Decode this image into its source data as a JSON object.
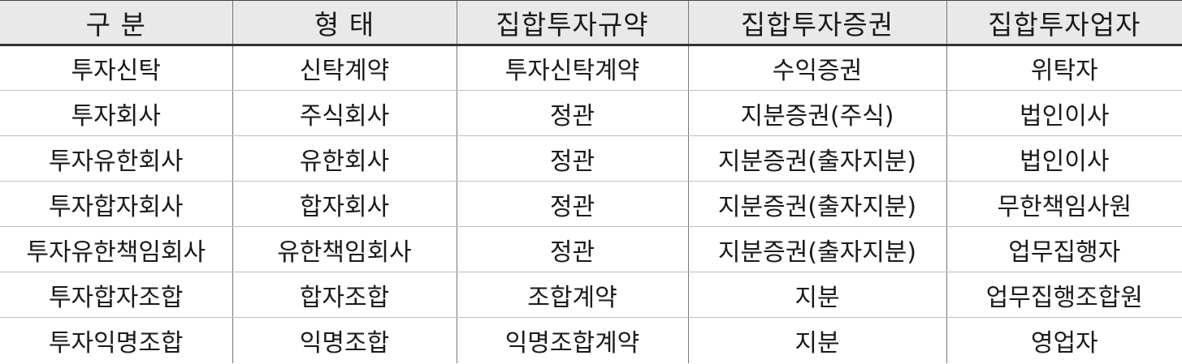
{
  "table": {
    "headers": [
      "구 분",
      "형 태",
      "집합투자규약",
      "집합투자증권",
      "집합투자업자"
    ],
    "rows": [
      [
        "투자신탁",
        "신탁계약",
        "투자신탁계약",
        "수익증권",
        "위탁자"
      ],
      [
        "투자회사",
        "주식회사",
        "정관",
        "지분증권(주식)",
        "법인이사"
      ],
      [
        "투자유한회사",
        "유한회사",
        "정관",
        "지분증권(출자지분)",
        "법인이사"
      ],
      [
        "투자합자회사",
        "합자회사",
        "정관",
        "지분증권(출자지분)",
        "무한책임사원"
      ],
      [
        "투자유한책임회사",
        "유한책임회사",
        "정관",
        "지분증권(출자지분)",
        "업무집행자"
      ],
      [
        "투자합자조합",
        "합자조합",
        "조합계약",
        "지분",
        "업무집행조합원"
      ],
      [
        "투자익명조합",
        "익명조합",
        "익명조합계약",
        "지분",
        "영업자"
      ]
    ]
  }
}
